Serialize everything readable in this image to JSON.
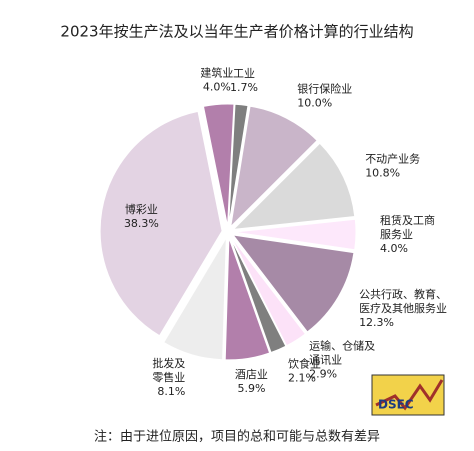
{
  "chart_data": {
    "type": "pie",
    "title": "2023年按生产法及以当年生产者价格计算的行业结构",
    "categories": [
      "工业",
      "银行保险业",
      "不动产业务",
      "租赁及工商\n服务业",
      "公共行政、教育、\n医疗及其他服务业",
      "运输、仓储及\n通讯业",
      "饮食业",
      "酒店业",
      "批发及\n零售业",
      "博彩业",
      "建筑业"
    ],
    "values": [
      1.7,
      10.0,
      10.8,
      4.0,
      12.3,
      2.9,
      2.1,
      5.9,
      8.1,
      38.3,
      4.0
    ],
    "value_labels": [
      "1.7%",
      "10.0%",
      "10.8%",
      "4.0%",
      "12.3%",
      "2.9%",
      "2.1%",
      "5.9%",
      "8.1%",
      "38.3%",
      "4.0%"
    ],
    "colors": [
      "#7f7f7f",
      "#c9b5c9",
      "#dadada",
      "#fde8fb",
      "#a68aa6",
      "#fce2f8",
      "#7f7f7f",
      "#b27fab",
      "#ededed",
      "#e3d3e3",
      "#b27fab"
    ],
    "note": "注：由于进位原因，项目的总和可能与总数有差异",
    "logo": "DSEC"
  }
}
